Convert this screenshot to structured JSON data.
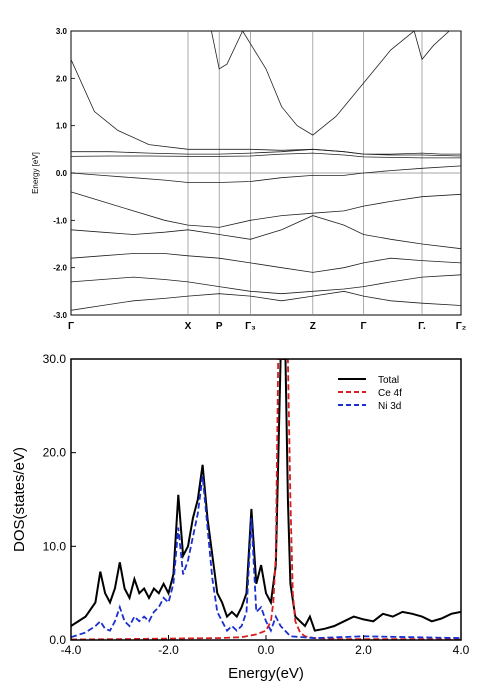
{
  "chart_data": [
    {
      "type": "line",
      "ylabel": "Energy  [eV]",
      "ylim": [
        -3.0,
        3.0
      ],
      "y_ticks": [
        "3.0",
        "2.0",
        "1.0",
        "0.0",
        "-1.0",
        "-2.0",
        "-3.0"
      ],
      "y_tick_values": [
        3.0,
        2.0,
        1.0,
        0.0,
        -1.0,
        -2.0,
        -3.0
      ],
      "high_symmetry_points": [
        {
          "label": "Γ",
          "x": 0.0
        },
        {
          "label": "X",
          "x": 0.3
        },
        {
          "label": "P",
          "x": 0.38
        },
        {
          "label": "Γ₃",
          "x": 0.46
        },
        {
          "label": "Z",
          "x": 0.62
        },
        {
          "label": "Γ",
          "x": 0.75
        },
        {
          "label": "Γ.",
          "x": 0.9
        },
        {
          "label": "Γ₂",
          "x": 1.0
        }
      ],
      "fermi_level": 0.0,
      "bands": [
        {
          "x": [
            0,
            0.06,
            0.12,
            0.2,
            0.3,
            0.38,
            0.46,
            0.54,
            0.62,
            0.7,
            0.75,
            0.82,
            0.9,
            0.95,
            1.0
          ],
          "y": [
            2.4,
            1.3,
            0.9,
            0.6,
            0.5,
            0.5,
            0.5,
            0.48,
            0.5,
            0.45,
            0.4,
            0.4,
            0.42,
            0.4,
            0.4
          ]
        },
        {
          "x": [
            0,
            0.1,
            0.2,
            0.3,
            0.38,
            0.46,
            0.54,
            0.62,
            0.7,
            0.75,
            0.82,
            0.9,
            1.0
          ],
          "y": [
            0.45,
            0.45,
            0.42,
            0.4,
            0.4,
            0.42,
            0.45,
            0.5,
            0.45,
            0.4,
            0.38,
            0.38,
            0.36
          ]
        },
        {
          "x": [
            0,
            0.1,
            0.2,
            0.3,
            0.38,
            0.46,
            0.54,
            0.62,
            0.7,
            0.75,
            0.82,
            0.9,
            1.0
          ],
          "y": [
            0.35,
            0.36,
            0.36,
            0.35,
            0.35,
            0.36,
            0.4,
            0.42,
            0.38,
            0.34,
            0.33,
            0.32,
            0.32
          ]
        },
        {
          "x": [
            0,
            0.08,
            0.16,
            0.24,
            0.3,
            0.38,
            0.46,
            0.54,
            0.62,
            0.7,
            0.75,
            0.82,
            0.9,
            1.0
          ],
          "y": [
            0.0,
            -0.05,
            -0.1,
            -0.15,
            -0.2,
            -0.2,
            -0.18,
            -0.1,
            -0.05,
            -0.05,
            0.0,
            0.05,
            0.1,
            0.15
          ]
        },
        {
          "x": [
            0,
            0.08,
            0.16,
            0.24,
            0.3,
            0.38,
            0.46,
            0.54,
            0.62,
            0.7,
            0.75,
            0.82,
            0.9,
            1.0
          ],
          "y": [
            -0.4,
            -0.6,
            -0.8,
            -1.0,
            -1.1,
            -1.15,
            -1.0,
            -0.9,
            -0.85,
            -0.8,
            -0.7,
            -0.6,
            -0.5,
            -0.45
          ]
        },
        {
          "x": [
            0,
            0.08,
            0.16,
            0.24,
            0.3,
            0.38,
            0.46,
            0.54,
            0.62,
            0.7,
            0.75,
            0.82,
            0.9,
            1.0
          ],
          "y": [
            -1.2,
            -1.25,
            -1.3,
            -1.25,
            -1.2,
            -1.3,
            -1.4,
            -1.2,
            -0.9,
            -1.1,
            -1.3,
            -1.4,
            -1.5,
            -1.6
          ]
        },
        {
          "x": [
            0,
            0.08,
            0.16,
            0.24,
            0.3,
            0.38,
            0.46,
            0.54,
            0.62,
            0.7,
            0.75,
            0.82,
            0.9,
            1.0
          ],
          "y": [
            -1.8,
            -1.75,
            -1.7,
            -1.7,
            -1.75,
            -1.8,
            -1.9,
            -2.0,
            -2.1,
            -2.0,
            -1.9,
            -1.8,
            -1.85,
            -1.9
          ]
        },
        {
          "x": [
            0,
            0.08,
            0.16,
            0.24,
            0.3,
            0.38,
            0.46,
            0.54,
            0.62,
            0.7,
            0.75,
            0.82,
            0.9,
            1.0
          ],
          "y": [
            -2.3,
            -2.25,
            -2.2,
            -2.25,
            -2.3,
            -2.4,
            -2.5,
            -2.55,
            -2.5,
            -2.45,
            -2.4,
            -2.3,
            -2.2,
            -2.15
          ]
        },
        {
          "x": [
            0,
            0.08,
            0.16,
            0.24,
            0.3,
            0.38,
            0.46,
            0.54,
            0.62,
            0.7,
            0.75,
            0.82,
            0.9,
            1.0
          ],
          "y": [
            -2.9,
            -2.8,
            -2.7,
            -2.65,
            -2.6,
            -2.55,
            -2.6,
            -2.7,
            -2.6,
            -2.5,
            -2.6,
            -2.7,
            -2.75,
            -2.8
          ]
        },
        {
          "x": [
            0.44,
            0.5,
            0.54,
            0.58,
            0.62,
            0.68,
            0.75,
            0.82,
            0.88,
            0.9,
            0.93,
            0.97,
            1.0
          ],
          "y": [
            3.0,
            2.2,
            1.4,
            1.0,
            0.8,
            1.2,
            1.9,
            2.6,
            3.0,
            2.4,
            2.7,
            3.0,
            3.0
          ]
        },
        {
          "x": [
            0.36,
            0.38,
            0.4,
            0.44
          ],
          "y": [
            3.0,
            2.2,
            2.3,
            3.0
          ]
        }
      ]
    },
    {
      "type": "line",
      "xlabel": "Energy(eV)",
      "ylabel": "DOS(states/eV)",
      "xlim": [
        -4.0,
        4.0
      ],
      "ylim": [
        0.0,
        30.0
      ],
      "x_ticks": [
        "-4.0",
        "-2.0",
        "0.0",
        "2.0",
        "4.0"
      ],
      "x_tick_values": [
        -4.0,
        -2.0,
        0.0,
        2.0,
        4.0
      ],
      "y_ticks": [
        "0.0",
        "10.0",
        "20.0",
        "30.0"
      ],
      "y_tick_values": [
        0.0,
        10.0,
        20.0,
        30.0
      ],
      "legend_position": "top-right",
      "series": [
        {
          "name": "Total",
          "color": "#000000",
          "dash": "solid",
          "x": [
            -4.0,
            -3.7,
            -3.5,
            -3.4,
            -3.3,
            -3.2,
            -3.1,
            -3.0,
            -2.9,
            -2.8,
            -2.7,
            -2.6,
            -2.5,
            -2.4,
            -2.3,
            -2.2,
            -2.1,
            -2.0,
            -1.9,
            -1.8,
            -1.7,
            -1.6,
            -1.5,
            -1.4,
            -1.3,
            -1.2,
            -1.1,
            -1.0,
            -0.9,
            -0.8,
            -0.7,
            -0.6,
            -0.5,
            -0.4,
            -0.3,
            -0.2,
            -0.1,
            0.0,
            0.1,
            0.2,
            0.3,
            0.35,
            0.4,
            0.45,
            0.5,
            0.6,
            0.7,
            0.8,
            0.9,
            1.0,
            1.2,
            1.4,
            1.6,
            1.8,
            2.0,
            2.2,
            2.4,
            2.6,
            2.8,
            3.0,
            3.2,
            3.4,
            3.6,
            3.8,
            4.0
          ],
          "y": [
            1.5,
            2.5,
            4.0,
            7.3,
            5.0,
            4.0,
            5.5,
            8.3,
            5.5,
            4.5,
            6.5,
            5.0,
            5.5,
            4.5,
            5.5,
            5.0,
            6.0,
            5.0,
            7.0,
            15.5,
            9.0,
            10.0,
            13.0,
            15.0,
            18.7,
            13.0,
            9.0,
            5.0,
            4.0,
            2.5,
            3.0,
            2.5,
            3.5,
            5.0,
            14.0,
            6.0,
            8.0,
            5.0,
            4.0,
            8.0,
            30.0,
            30.0,
            30.0,
            15.0,
            6.0,
            2.5,
            2.0,
            1.5,
            2.5,
            1.0,
            1.2,
            1.5,
            2.0,
            2.5,
            2.2,
            2.0,
            2.8,
            2.5,
            3.0,
            2.8,
            2.5,
            2.0,
            2.3,
            2.8,
            3.0
          ]
        },
        {
          "name": "Ce 4f",
          "color": "#d81e1e",
          "dash": "dashed",
          "x": [
            -4.0,
            -3.0,
            -2.0,
            -1.0,
            -0.5,
            -0.2,
            0.0,
            0.1,
            0.15,
            0.2,
            0.25,
            0.3,
            0.35,
            0.4,
            0.45,
            0.5,
            0.55,
            0.6,
            0.7,
            0.8,
            1.0,
            1.5,
            2.0,
            3.0,
            4.0
          ],
          "y": [
            0.05,
            0.1,
            0.15,
            0.2,
            0.3,
            0.6,
            1.0,
            2.0,
            4.0,
            9.0,
            30.0,
            30.0,
            30.0,
            30.0,
            30.0,
            15.0,
            5.0,
            2.0,
            0.8,
            0.4,
            0.2,
            0.1,
            0.1,
            0.1,
            0.05
          ]
        },
        {
          "name": "Ni 3d",
          "color": "#1a2fcf",
          "dash": "dashed",
          "x": [
            -4.0,
            -3.7,
            -3.5,
            -3.4,
            -3.3,
            -3.2,
            -3.1,
            -3.0,
            -2.9,
            -2.8,
            -2.7,
            -2.6,
            -2.5,
            -2.4,
            -2.3,
            -2.2,
            -2.1,
            -2.0,
            -1.9,
            -1.8,
            -1.7,
            -1.6,
            -1.5,
            -1.4,
            -1.3,
            -1.2,
            -1.1,
            -1.0,
            -0.9,
            -0.8,
            -0.7,
            -0.6,
            -0.5,
            -0.4,
            -0.3,
            -0.2,
            -0.1,
            0.0,
            0.1,
            0.2,
            0.3,
            0.5,
            1.0,
            2.0,
            3.0,
            4.0
          ],
          "y": [
            0.3,
            0.8,
            1.5,
            2.0,
            1.2,
            1.0,
            2.0,
            3.5,
            2.0,
            1.5,
            2.5,
            2.0,
            2.5,
            2.0,
            3.0,
            3.5,
            4.5,
            4.0,
            6.0,
            12.0,
            7.0,
            8.5,
            11.0,
            13.5,
            17.5,
            12.0,
            6.5,
            3.0,
            2.0,
            1.0,
            1.5,
            1.0,
            1.5,
            3.0,
            13.0,
            3.0,
            3.5,
            2.0,
            1.0,
            2.5,
            1.5,
            0.4,
            0.2,
            0.4,
            0.3,
            0.2
          ]
        }
      ]
    }
  ]
}
